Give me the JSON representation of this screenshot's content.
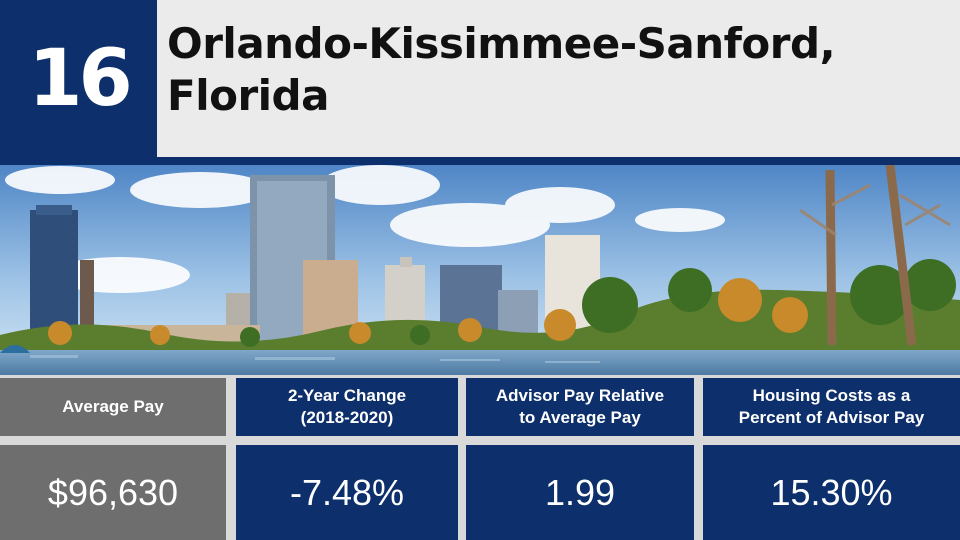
{
  "slide": {
    "rank": "16",
    "title_line1": "Orlando-Kissimmee-Sanford,",
    "title_line2": "Florida"
  },
  "photo": {
    "subject": "orlando-skyline-lake-eola"
  },
  "stats": {
    "headers": [
      {
        "line1": "Average Pay",
        "line2": ""
      },
      {
        "line1": "2-Year Change",
        "line2": "(2018-2020)"
      },
      {
        "line1": "Advisor Pay Relative",
        "line2": "to Average Pay"
      },
      {
        "line1": "Housing Costs as a",
        "line2": "Percent of Advisor Pay"
      }
    ],
    "values": [
      "$96,630",
      "-7.48%",
      "1.99",
      "15.30%"
    ]
  },
  "colors": {
    "navy": "#0d2f6b",
    "grey": "#6e6e6e",
    "title_bg": "#ebebeb"
  }
}
